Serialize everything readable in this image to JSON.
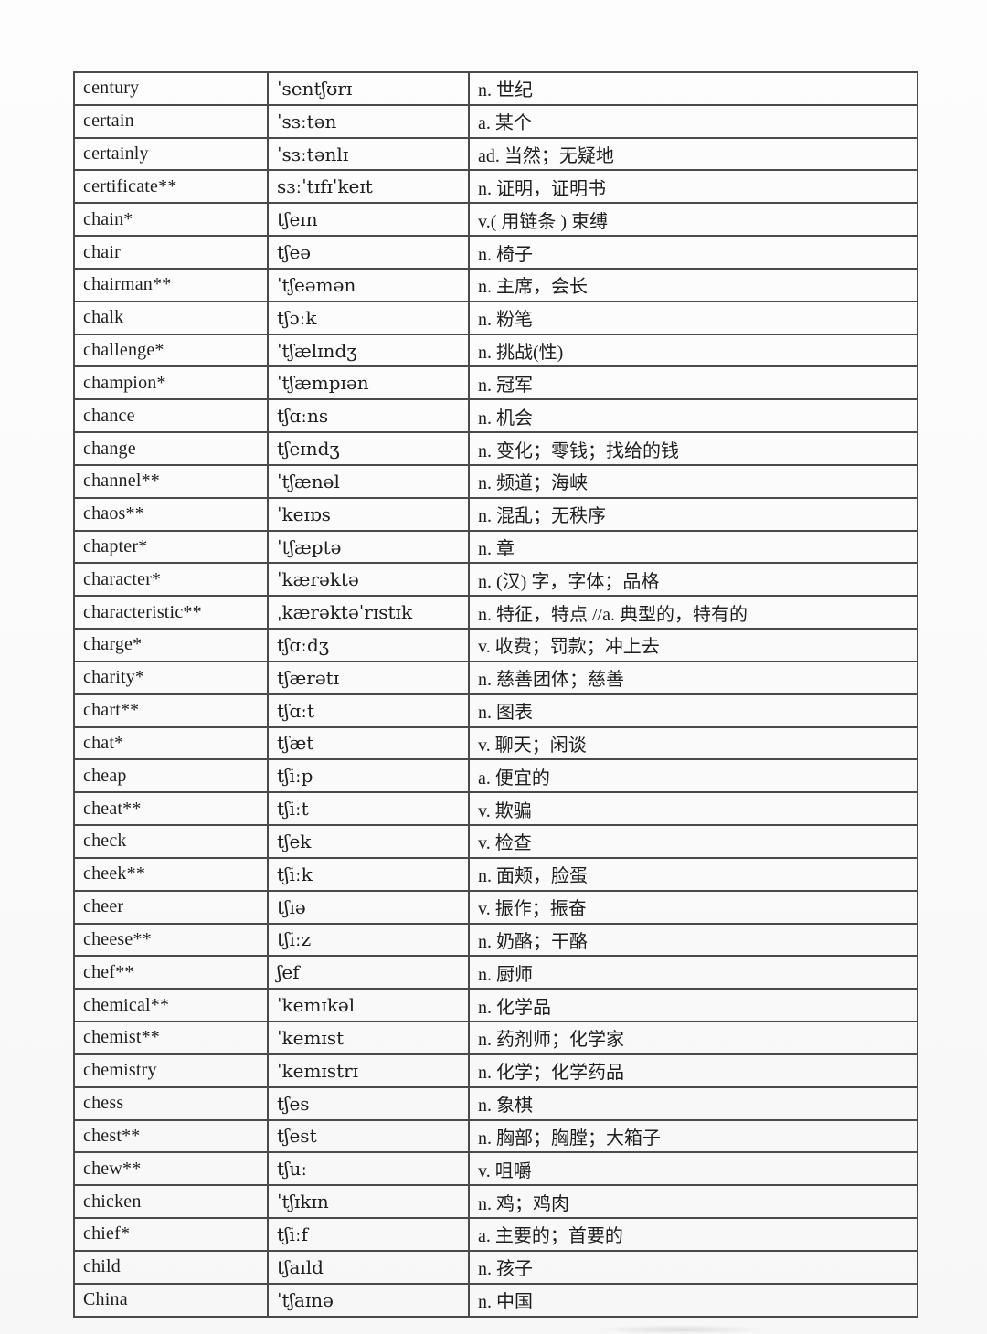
{
  "colors": {
    "page_background": "#fcfcfc",
    "table_border": "#4a4a4a",
    "text": "#1e1e1e"
  },
  "table": {
    "columns": [
      "word",
      "phonetic",
      "meaning"
    ],
    "rows": [
      {
        "word": "century",
        "phonetic": "ˈsentʃʊrɪ",
        "meaning": "n. 世纪"
      },
      {
        "word": "certain",
        "phonetic": "ˈsɜːtən",
        "meaning": "a. 某个"
      },
      {
        "word": "certainly",
        "phonetic": "ˈsɜːtənlɪ",
        "meaning": "ad. 当然；无疑地"
      },
      {
        "word": "certificate**",
        "phonetic": "sɜːˈtɪfɪˈkeɪt",
        "meaning": "n. 证明，证明书"
      },
      {
        "word": "chain*",
        "phonetic": "tʃeɪn",
        "meaning": "v.( 用链条 ) 束缚"
      },
      {
        "word": "chair",
        "phonetic": "tʃeə",
        "meaning": "n. 椅子"
      },
      {
        "word": "chairman**",
        "phonetic": "ˈtʃeəmən",
        "meaning": "n. 主席，会长"
      },
      {
        "word": "chalk",
        "phonetic": "tʃɔːk",
        "meaning": "n. 粉笔"
      },
      {
        "word": "challenge*",
        "phonetic": "ˈtʃælɪndʒ",
        "meaning": "n. 挑战(性)"
      },
      {
        "word": "champion*",
        "phonetic": "ˈtʃæmpɪən",
        "meaning": "n. 冠军"
      },
      {
        "word": "chance",
        "phonetic": "tʃɑːns",
        "meaning": "n. 机会"
      },
      {
        "word": "change",
        "phonetic": "tʃeɪndʒ",
        "meaning": "n. 变化；零钱；找给的钱"
      },
      {
        "word": "channel**",
        "phonetic": "ˈtʃænəl",
        "meaning": "n. 频道；海峡"
      },
      {
        "word": "chaos**",
        "phonetic": "ˈkeɪɒs",
        "meaning": "n. 混乱；无秩序"
      },
      {
        "word": "chapter*",
        "phonetic": "ˈtʃæptə",
        "meaning": "n. 章"
      },
      {
        "word": "character*",
        "phonetic": "ˈkærəktə",
        "meaning": "n. (汉) 字，字体；品格"
      },
      {
        "word": "characteristic**",
        "phonetic": "ˌkærəktəˈrɪstɪk",
        "meaning": "n. 特征，特点 //a. 典型的，特有的"
      },
      {
        "word": "charge*",
        "phonetic": "tʃɑːdʒ",
        "meaning": "v. 收费；罚款；冲上去"
      },
      {
        "word": "charity*",
        "phonetic": "tʃærətɪ",
        "meaning": "n. 慈善团体；慈善"
      },
      {
        "word": "chart**",
        "phonetic": "tʃɑːt",
        "meaning": "n. 图表"
      },
      {
        "word": "chat*",
        "phonetic": "tʃæt",
        "meaning": "v. 聊天；闲谈"
      },
      {
        "word": "cheap",
        "phonetic": "tʃiːp",
        "meaning": "a. 便宜的"
      },
      {
        "word": "cheat**",
        "phonetic": "tʃiːt",
        "meaning": "v. 欺骗"
      },
      {
        "word": "check",
        "phonetic": "tʃek",
        "meaning": "v. 检查"
      },
      {
        "word": "cheek**",
        "phonetic": "tʃiːk",
        "meaning": "n. 面颊，脸蛋"
      },
      {
        "word": "cheer",
        "phonetic": "tʃɪə",
        "meaning": "v. 振作；振奋"
      },
      {
        "word": "cheese**",
        "phonetic": "tʃiːz",
        "meaning": "n. 奶酪；干酪"
      },
      {
        "word": "chef**",
        "phonetic": "ʃef",
        "meaning": "n. 厨师"
      },
      {
        "word": "chemical**",
        "phonetic": "ˈkemɪkəl",
        "meaning": "n. 化学品"
      },
      {
        "word": "chemist**",
        "phonetic": "ˈkemɪst",
        "meaning": "n. 药剂师；化学家"
      },
      {
        "word": "chemistry",
        "phonetic": "ˈkemɪstrɪ",
        "meaning": "n. 化学；化学药品"
      },
      {
        "word": "chess",
        "phonetic": "tʃes",
        "meaning": "n. 象棋"
      },
      {
        "word": "chest**",
        "phonetic": "tʃest",
        "meaning": "n. 胸部；胸膛；大箱子"
      },
      {
        "word": "chew**",
        "phonetic": "tʃuː",
        "meaning": "v. 咀嚼"
      },
      {
        "word": "chicken",
        "phonetic": "ˈtʃɪkɪn",
        "meaning": "n. 鸡；鸡肉"
      },
      {
        "word": "chief*",
        "phonetic": "tʃiːf",
        "meaning": "a. 主要的；首要的"
      },
      {
        "word": "child",
        "phonetic": "tʃaɪld",
        "meaning": "n. 孩子"
      },
      {
        "word": "China",
        "phonetic": "ˈtʃaɪnə",
        "meaning": "n. 中国"
      }
    ]
  }
}
